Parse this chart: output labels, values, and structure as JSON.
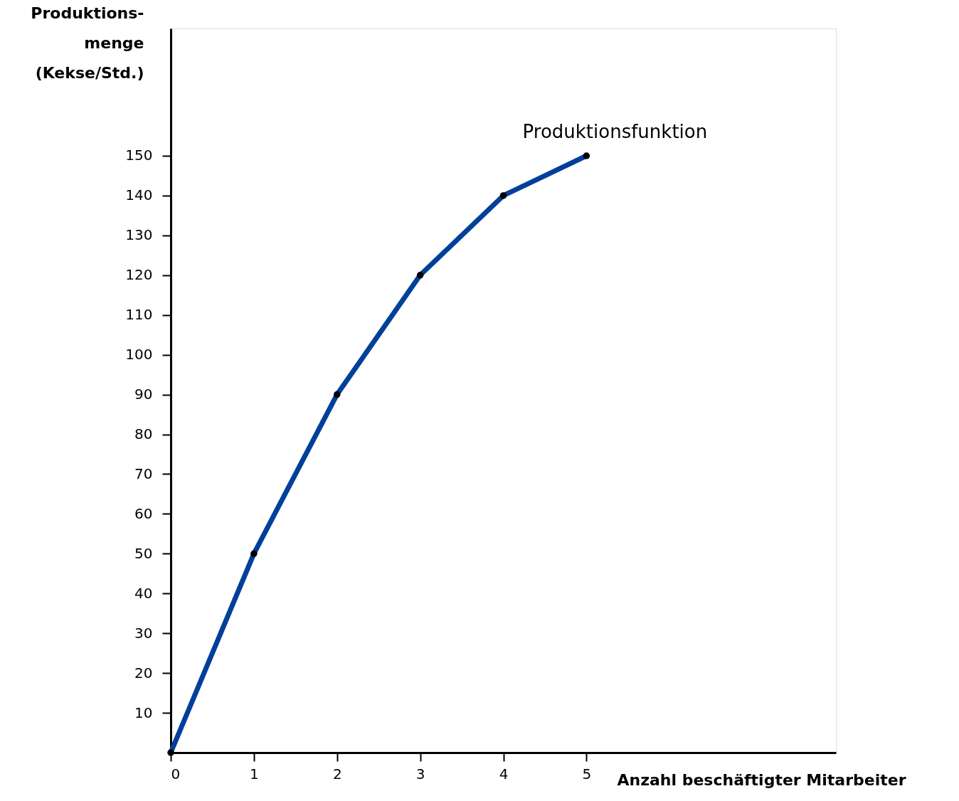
{
  "chart_data": {
    "type": "line",
    "xlabel": "Anzahl beschäftigter Mitarbeiter",
    "ylabel": "Produktions-\nmenge\n(Kekse/Std.)",
    "x": [
      0,
      1,
      2,
      3,
      4,
      5
    ],
    "series": [
      {
        "name": "Produktionsfunktion",
        "color": "#003f9a",
        "values": [
          0,
          50,
          90,
          120,
          140,
          150
        ]
      }
    ],
    "xlim": [
      0,
      8
    ],
    "xticks": [
      0,
      1,
      2,
      3,
      4,
      5
    ],
    "ylim": [
      0,
      182
    ],
    "yticks": [
      10,
      20,
      30,
      40,
      50,
      60,
      70,
      80,
      90,
      100,
      110,
      120,
      130,
      140,
      150
    ],
    "grid": false,
    "marker": "circle",
    "line_style": "solid"
  }
}
